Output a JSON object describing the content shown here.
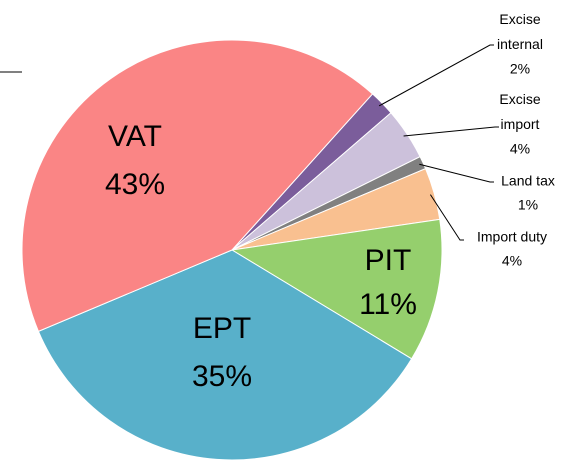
{
  "chart_data": {
    "type": "pie",
    "categories": [
      "Excise internal",
      "Excise import",
      "Land tax",
      "Import duty",
      "PIT",
      "EPT",
      "VAT"
    ],
    "values": [
      2,
      4,
      1,
      4,
      11,
      35,
      43
    ],
    "value_labels": [
      "2%",
      "4%",
      "1%",
      "4%",
      "11%",
      "35%",
      "43%"
    ],
    "colors": [
      "#7b5d9b",
      "#ccc1db",
      "#808080",
      "#f9c090",
      "#95cf6d",
      "#58b0ca",
      "#fa8585"
    ]
  }
}
